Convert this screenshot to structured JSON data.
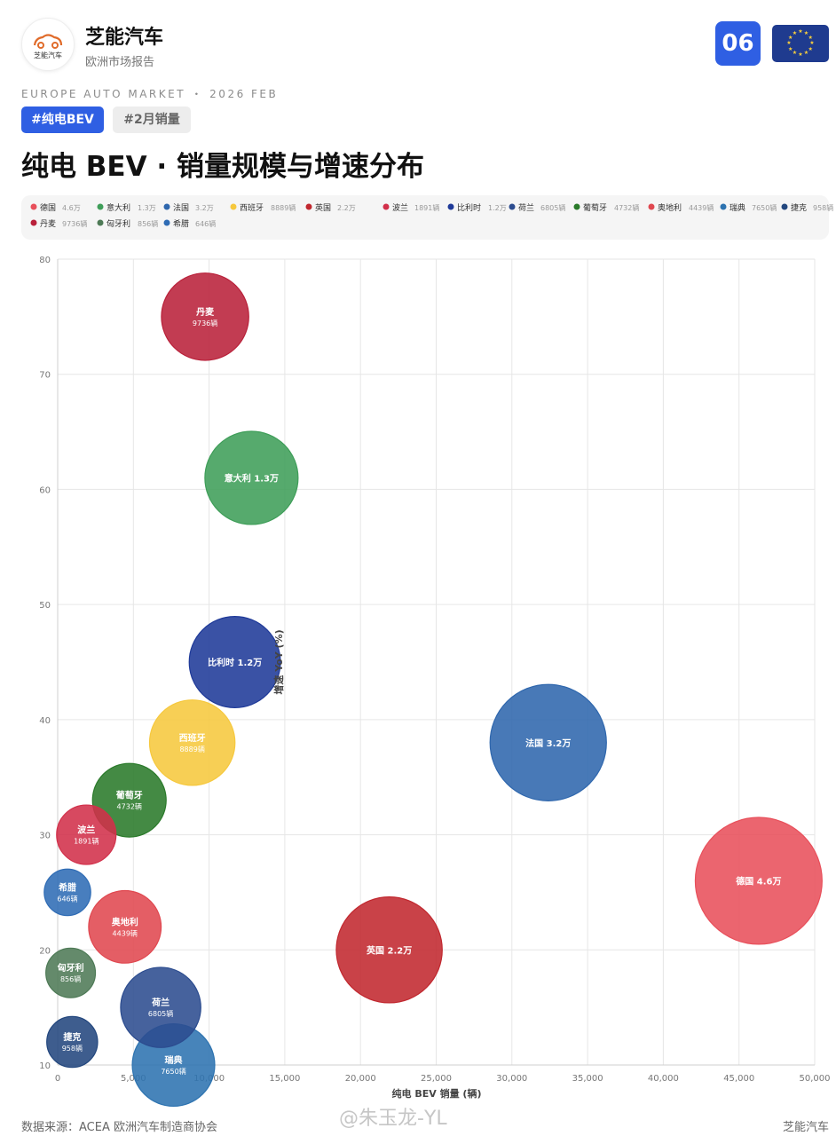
{
  "header": {
    "brand": "芝能汽车",
    "brand_sub": "欧洲市场报告",
    "logo_text": "芝能汽车",
    "page_num": "06",
    "flag_icon": "eu-flag-icon"
  },
  "kicker": "EUROPE AUTO MARKET ・ 2026 FEB",
  "tags": [
    "#纯电BEV",
    "#2月销量"
  ],
  "title": "纯电 BEV · 销量规模与增速分布",
  "chart_data": {
    "type": "scatter",
    "variant": "bubble",
    "xlabel": "纯电 BEV 销量 (辆)",
    "ylabel": "增速 YoY (%)",
    "xlim": [
      0,
      50000
    ],
    "ylim": [
      10,
      80
    ],
    "xticks": [
      0,
      5000,
      10000,
      15000,
      20000,
      25000,
      30000,
      35000,
      40000,
      45000,
      50000
    ],
    "xtick_labels": [
      "0",
      "5,000",
      "10,000",
      "15,000",
      "20,000",
      "25,000",
      "30,000",
      "35,000",
      "40,000",
      "45,000",
      "50,000"
    ],
    "yticks": [
      10,
      20,
      30,
      40,
      50,
      60,
      70,
      80
    ],
    "ytick_labels": [
      "10",
      "20",
      "30",
      "40",
      "50",
      "60",
      "70",
      "80"
    ],
    "grid": true,
    "legend_position": "top",
    "series": [
      {
        "name": "德国",
        "legend_value": "4.6万",
        "point_label": "德国 4.6万",
        "point_sub": "",
        "x": 46300,
        "y": 26,
        "color": "#e8505b"
      },
      {
        "name": "意大利",
        "legend_value": "1.3万",
        "point_label": "意大利 1.3万",
        "point_sub": "",
        "x": 12800,
        "y": 61,
        "color": "#3f9e59"
      },
      {
        "name": "法国",
        "legend_value": "3.2万",
        "point_label": "法国 3.2万",
        "point_sub": "",
        "x": 32400,
        "y": 38,
        "color": "#2f67ad"
      },
      {
        "name": "西班牙",
        "legend_value": "8889辆",
        "point_label": "西班牙",
        "point_sub": "8889辆",
        "x": 8889,
        "y": 38,
        "color": "#f6c83d"
      },
      {
        "name": "英国",
        "legend_value": "2.2万",
        "point_label": "英国 2.2万",
        "point_sub": "",
        "x": 21900,
        "y": 20,
        "color": "#c1282f"
      },
      {
        "name": "波兰",
        "legend_value": "1891辆",
        "point_label": "波兰",
        "point_sub": "1891辆",
        "x": 1891,
        "y": 30,
        "color": "#d2304a"
      },
      {
        "name": "比利时",
        "legend_value": "1.2万",
        "point_label": "比利时 1.2万",
        "point_sub": "",
        "x": 11700,
        "y": 45,
        "color": "#1f3a99"
      },
      {
        "name": "荷兰",
        "legend_value": "6805辆",
        "point_label": "荷兰",
        "point_sub": "6805辆",
        "x": 6805,
        "y": 15,
        "color": "#2c4c8f"
      },
      {
        "name": "葡萄牙",
        "legend_value": "4732辆",
        "point_label": "葡萄牙",
        "point_sub": "4732辆",
        "x": 4732,
        "y": 33,
        "color": "#2a7a2a"
      },
      {
        "name": "奥地利",
        "legend_value": "4439辆",
        "point_label": "奥地利",
        "point_sub": "4439辆",
        "x": 4439,
        "y": 22,
        "color": "#e04850"
      },
      {
        "name": "瑞典",
        "legend_value": "7650辆",
        "point_label": "瑞典",
        "point_sub": "7650辆",
        "x": 7650,
        "y": 10,
        "color": "#2d73b0"
      },
      {
        "name": "捷克",
        "legend_value": "958辆",
        "point_label": "捷克",
        "point_sub": "958辆",
        "x": 958,
        "y": 12,
        "color": "#23477e"
      },
      {
        "name": "丹麦",
        "legend_value": "9736辆",
        "point_label": "丹麦",
        "point_sub": "9736辆",
        "x": 9736,
        "y": 75,
        "color": "#b9213a"
      },
      {
        "name": "匈牙利",
        "legend_value": "856辆",
        "point_label": "匈牙利",
        "point_sub": "856辆",
        "x": 856,
        "y": 18,
        "color": "#4e7a56"
      },
      {
        "name": "希腊",
        "legend_value": "646辆",
        "point_label": "希腊",
        "point_sub": "646辆",
        "x": 646,
        "y": 25,
        "color": "#2f6cb5"
      }
    ]
  },
  "footer": {
    "source": "数据来源：ACEA 欧洲汽车制造商协会",
    "brand": "芝能汽车",
    "watermark": "@朱玉龙-YL"
  }
}
